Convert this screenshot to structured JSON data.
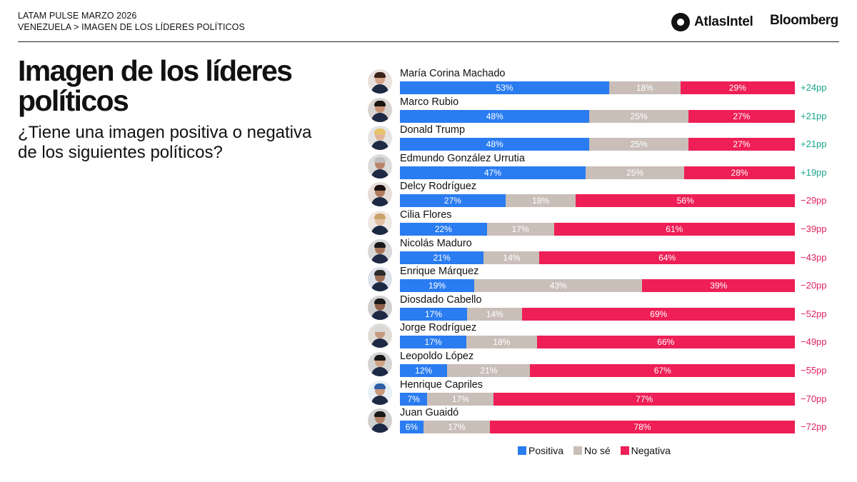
{
  "header": {
    "line1": "LATAM PULSE MARZO 2026",
    "line2": "VENEZUELA > IMAGEN DE LOS LÍDERES POLÍTICOS",
    "brand_atlas": "AtlasIntel",
    "brand_bloomberg": "Bloomberg"
  },
  "slide": {
    "title": "Imagen de los líderes políticos",
    "subtitle": "¿Tiene una imagen positiva o negativa de los siguientes políticos?"
  },
  "colors": {
    "positiva": "#2a7cf0",
    "no_se": "#c9bfb8",
    "negativa": "#ee1f56",
    "net_positive": "#1aa58a",
    "net_negative": "#e0245e"
  },
  "legend": {
    "positiva": "Positiva",
    "no_se": "No sé",
    "negativa": "Negativa"
  },
  "chart_data": {
    "type": "bar",
    "orientation": "horizontal",
    "stacked": true,
    "value_unit": "%",
    "categories": [
      "María Corina Machado",
      "Marco Rubio",
      "Donald Trump",
      "Edmundo González Urrutia",
      "Delcy Rodríguez",
      "Cilia Flores",
      "Nicolás Maduro",
      "Enrique Márquez",
      "Diosdado Cabello",
      "Jorge Rodríguez",
      "Leopoldo López",
      "Henrique Capriles",
      "Juan Guaidó"
    ],
    "series": [
      {
        "name": "Positiva",
        "values": [
          53,
          48,
          48,
          47,
          27,
          22,
          21,
          19,
          17,
          17,
          12,
          7,
          6
        ]
      },
      {
        "name": "No sé",
        "values": [
          18,
          25,
          25,
          25,
          18,
          17,
          14,
          43,
          14,
          18,
          21,
          17,
          17
        ]
      },
      {
        "name": "Negativa",
        "values": [
          29,
          27,
          27,
          28,
          56,
          61,
          64,
          39,
          69,
          66,
          67,
          77,
          78
        ]
      }
    ],
    "net_labels": [
      "+24pp",
      "+21pp",
      "+21pp",
      "+19pp",
      "−29pp",
      "−39pp",
      "−43pp",
      "−20pp",
      "−52pp",
      "−49pp",
      "−55pp",
      "−70pp",
      "−72pp"
    ],
    "legend_position": "bottom",
    "grid": false
  }
}
